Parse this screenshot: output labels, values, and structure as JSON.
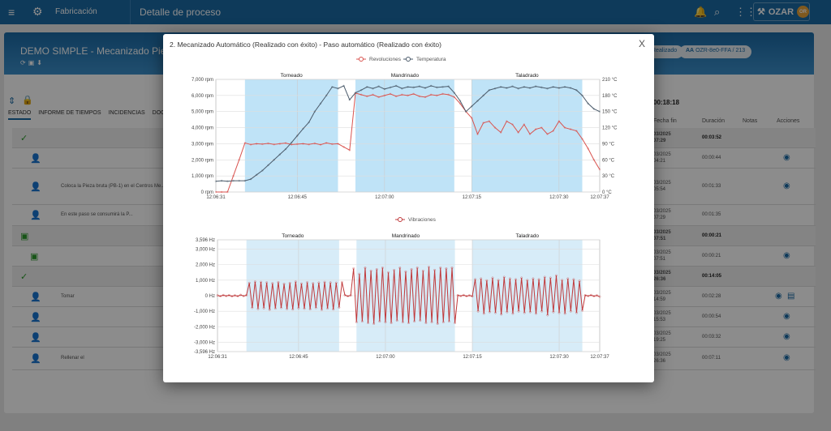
{
  "topbar": {
    "menu_icon": "hamburger-icon",
    "logo_icon": "robot-arm-icon",
    "app": "Fabricación",
    "page": "Detalle de proceso",
    "user": "OZAR",
    "avatar": "OR"
  },
  "header": {
    "title": "DEMO SIMPLE - Mecanizado Pieza",
    "status_pill": "Realizado",
    "code_label": "AA",
    "code": "OZR-8e0-FFA / 213"
  },
  "tabs": [
    "ESTADO",
    "INFORME DE TIEMPOS",
    "INCIDENCIAS",
    "DOCUMENTOS"
  ],
  "total_time": "00:18:18",
  "table": {
    "headers": [
      "Fecha fin",
      "Duración",
      "Notas",
      "Acciones"
    ],
    "rows": [
      {
        "group": true,
        "icon": "check",
        "date": "03/2025",
        "time": "07:29",
        "dur": "00:03:52"
      },
      {
        "icon": "user",
        "date": "03/2025",
        "time": "04:21",
        "dur": "00:00:44",
        "eye": true
      },
      {
        "icon": "user",
        "text": "Coloca la Pieza bruta (PB-1) en el Centros Me... Consultar \"Man...",
        "date": "03/2025",
        "time": "05:54",
        "dur": "00:01:33",
        "eye": true
      },
      {
        "icon": "user",
        "text": "En este paso se consumirá la P...",
        "date": "03/2025",
        "time": "07:29",
        "dur": "00:01:35"
      },
      {
        "group": true,
        "icon": "chip",
        "date": "03/2025",
        "time": "07:51",
        "dur": "00:00:21"
      },
      {
        "icon": "chip",
        "date": "03/2025",
        "time": "07:51",
        "dur": "00:00:21",
        "eye": true
      },
      {
        "group": true,
        "icon": "check",
        "date": "03/2025",
        "time": "26:36",
        "dur": "00:14:05"
      },
      {
        "icon": "user",
        "text": "Tomar",
        "date": "03/2025",
        "time": "14:59",
        "dur": "00:02:28",
        "eye": true,
        "note": true
      },
      {
        "icon": "user",
        "date": "03/2025",
        "time": "15:53",
        "dur": "00:00:54",
        "eye": true
      },
      {
        "icon": "user",
        "date": "03/2025",
        "time": "19:25",
        "dur": "00:03:32",
        "eye": true
      },
      {
        "icon": "user",
        "text": "Rellenar el",
        "date": "03/2025",
        "time": "26:36",
        "dur": "00:07:11",
        "eye": true
      }
    ]
  },
  "modal": {
    "title": "2. Mecanizado Automático (Realizado con éxito) - Paso automático (Realizado con éxito)",
    "close": "X"
  },
  "chart_data": [
    {
      "type": "line",
      "legend_position": "top",
      "grid": true,
      "x_start": "12:06:31",
      "x_step_seconds": 1,
      "x_ticks": [
        "12:06:31",
        "12:06:45",
        "12:07:00",
        "12:07:15",
        "12:07:30",
        "12:07:37"
      ],
      "y_left_ticks": [
        "0 rpm",
        "1,000 rpm",
        "2,000 rpm",
        "3,000 rpm",
        "4,000 rpm",
        "5,000 rpm",
        "6,000 rpm",
        "7,000 rpm"
      ],
      "y_right_ticks": [
        "0 °C",
        "30 °C",
        "60 °C",
        "90 °C",
        "120 °C",
        "150 °C",
        "180 °C",
        "210 °C"
      ],
      "ylim_left": [
        0,
        7000
      ],
      "ylim_right": [
        0,
        210
      ],
      "bands": [
        {
          "label": "Torneado",
          "from": "12:06:36",
          "to": "12:06:52"
        },
        {
          "label": "Mandrinado",
          "from": "12:06:55",
          "to": "12:07:12"
        },
        {
          "label": "Taladrado",
          "from": "12:07:15",
          "to": "12:07:34"
        }
      ],
      "series": [
        {
          "name": "Revoluciones",
          "axis": "left",
          "color": "#d9534f",
          "values": [
            0,
            0,
            0,
            1000,
            2000,
            3050,
            2950,
            3000,
            2980,
            3020,
            2960,
            3000,
            3040,
            2950,
            2980,
            3000,
            2960,
            3020,
            2940,
            3050,
            2980,
            3000,
            2800,
            2600,
            6150,
            6050,
            5950,
            6050,
            5900,
            6000,
            6100,
            5950,
            6050,
            6000,
            6100,
            5950,
            5900,
            6050,
            6000,
            6100,
            6050,
            5900,
            5500,
            5000,
            4600,
            3600,
            4300,
            4400,
            4000,
            3700,
            4400,
            4200,
            3700,
            4200,
            3600,
            3900,
            4000,
            3600,
            3800,
            4400,
            4000,
            3900,
            3800,
            3300,
            2700,
            2000,
            1400
          ]
        },
        {
          "name": "Temperatura",
          "axis": "right",
          "color": "#4a5a6a",
          "values": [
            20,
            21,
            20,
            21,
            21,
            21,
            24,
            32,
            40,
            50,
            60,
            70,
            80,
            92,
            105,
            118,
            130,
            150,
            165,
            180,
            196,
            193,
            198,
            172,
            185,
            190,
            196,
            193,
            197,
            192,
            195,
            198,
            193,
            196,
            195,
            197,
            194,
            198,
            195,
            196,
            197,
            185,
            170,
            150,
            160,
            170,
            180,
            190,
            193,
            196,
            194,
            197,
            193,
            196,
            194,
            197,
            195,
            193,
            196,
            194,
            196,
            194,
            190,
            180,
            165,
            155,
            150
          ]
        }
      ]
    },
    {
      "type": "line",
      "legend_position": "top",
      "grid": true,
      "x_start": "12:06:31",
      "x_step_seconds": 0.5,
      "x_ticks": [
        "12:06:31",
        "12:06:45",
        "12:07:00",
        "12:07:15",
        "12:07:30",
        "12:07:37"
      ],
      "y_ticks": [
        "-3,596 Hz",
        "-3,000 Hz",
        "-2,000 Hz",
        "-1,000 Hz",
        "0 Hz",
        "1,000 Hz",
        "2,000 Hz",
        "3,000 Hz",
        "3,596 Hz"
      ],
      "ylim": [
        -3596,
        3596
      ],
      "bands": [
        {
          "label": "Torneado",
          "from": "12:06:36",
          "to": "12:06:52"
        },
        {
          "label": "Mandrinado",
          "from": "12:06:55",
          "to": "12:07:12"
        },
        {
          "label": "Taladrado",
          "from": "12:07:15",
          "to": "12:07:34"
        }
      ],
      "series": [
        {
          "name": "Vibraciones",
          "color": "#c0393b",
          "values": [
            20,
            -30,
            40,
            -20,
            30,
            -40,
            20,
            -30,
            50,
            -20,
            30,
            820,
            -780,
            900,
            -850,
            880,
            -800,
            850,
            -900,
            800,
            -820,
            870,
            -780,
            760,
            -850,
            820,
            -880,
            900,
            -800,
            780,
            -830,
            860,
            -870,
            800,
            -780,
            840,
            -900,
            880,
            -820,
            850,
            -880,
            830,
            -760,
            870,
            40,
            -30,
            20,
            1750,
            -1700,
            1400,
            -1650,
            1800,
            -1750,
            1600,
            -1800,
            1700,
            -1650,
            1800,
            -1700,
            1500,
            -1750,
            1650,
            -1600,
            1800,
            -1700,
            1550,
            -1750,
            1700,
            -1650,
            1800,
            -1600,
            1600,
            -1750,
            1850,
            -1700,
            1650,
            -1800,
            1800,
            -1700,
            1750,
            -1650,
            1800,
            -1750,
            30,
            -20,
            40,
            -30,
            20,
            -40,
            1050,
            -1000,
            1100,
            -1150,
            980,
            -1050,
            1150,
            -1100,
            1000,
            -1200,
            1200,
            -1050,
            1100,
            -1150,
            1050,
            -1000,
            1150,
            -1100,
            1000,
            -1050,
            1100,
            -1150,
            1050,
            -1000,
            1200,
            -1250,
            1150,
            -1050,
            1300,
            -1100,
            1000,
            -1150,
            1100,
            -1000,
            1050,
            -1100,
            950,
            -950,
            30,
            -20,
            40,
            -30,
            20,
            -60
          ]
        }
      ]
    }
  ]
}
